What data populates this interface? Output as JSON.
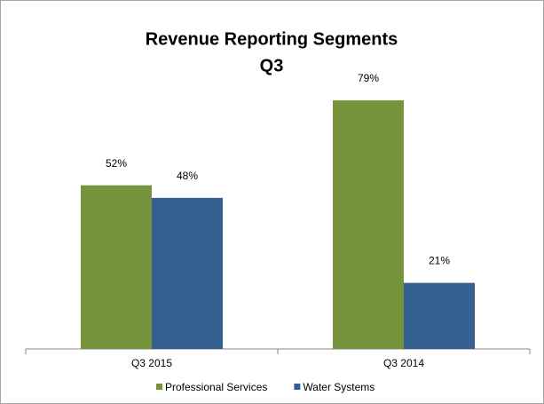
{
  "chart_data": {
    "type": "bar",
    "title": "Revenue Reporting Segments",
    "subtitle": "Q3",
    "categories": [
      "Q3 2015",
      "Q3 2014"
    ],
    "series": [
      {
        "name": "Professional Services",
        "color": "#77933c",
        "values": [
          52,
          79
        ],
        "value_labels": [
          "52%",
          "79%"
        ]
      },
      {
        "name": "Water Systems",
        "color": "#376092",
        "values": [
          48,
          21
        ],
        "value_labels": [
          "48%",
          "21%"
        ]
      }
    ],
    "legend": "bottom"
  }
}
